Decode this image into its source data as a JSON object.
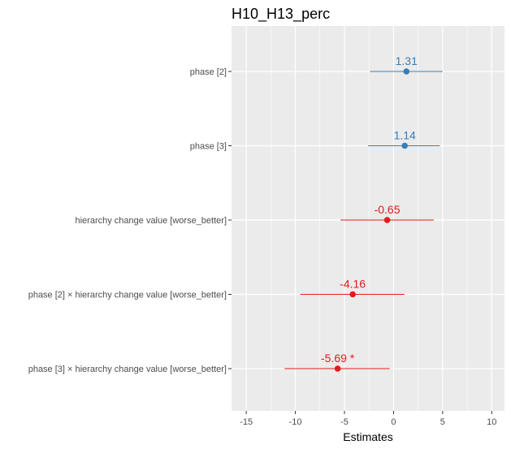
{
  "chart_data": {
    "type": "forest",
    "title": "H10_H13_perc",
    "xlabel": "Estimates",
    "xlim": [
      -16.5,
      11.3
    ],
    "xticks": [
      -15,
      -10,
      -5,
      0,
      5,
      10
    ],
    "xtick_labels": [
      "-15",
      "-10",
      "-5",
      "0",
      "5",
      "10"
    ],
    "grid": true,
    "panel_background": "#EBEBEB",
    "grid_color": "#FFFFFF",
    "colors": {
      "positive": "#377EB8",
      "negative": "#E41A1C"
    },
    "terms": [
      {
        "label": "phase [2]",
        "estimate": 1.31,
        "ci_low": -2.4,
        "ci_high": 5.0,
        "value_label": "1.31",
        "sign": "positive"
      },
      {
        "label": "phase [3]",
        "estimate": 1.14,
        "ci_low": -2.6,
        "ci_high": 4.7,
        "value_label": "1.14",
        "sign": "positive"
      },
      {
        "label": "hierarchy change value [worse_better]",
        "estimate": -0.65,
        "ci_low": -5.4,
        "ci_high": 4.1,
        "value_label": "-0.65",
        "sign": "negative"
      },
      {
        "label": "phase [2] × hierarchy change value [worse_better]",
        "estimate": -4.16,
        "ci_low": -9.5,
        "ci_high": 1.1,
        "value_label": "-4.16",
        "sign": "negative"
      },
      {
        "label": "phase [3] × hierarchy change value [worse_better]",
        "estimate": -5.69,
        "ci_low": -11.1,
        "ci_high": -0.4,
        "value_label": "-5.69 *",
        "sign": "negative"
      }
    ]
  }
}
